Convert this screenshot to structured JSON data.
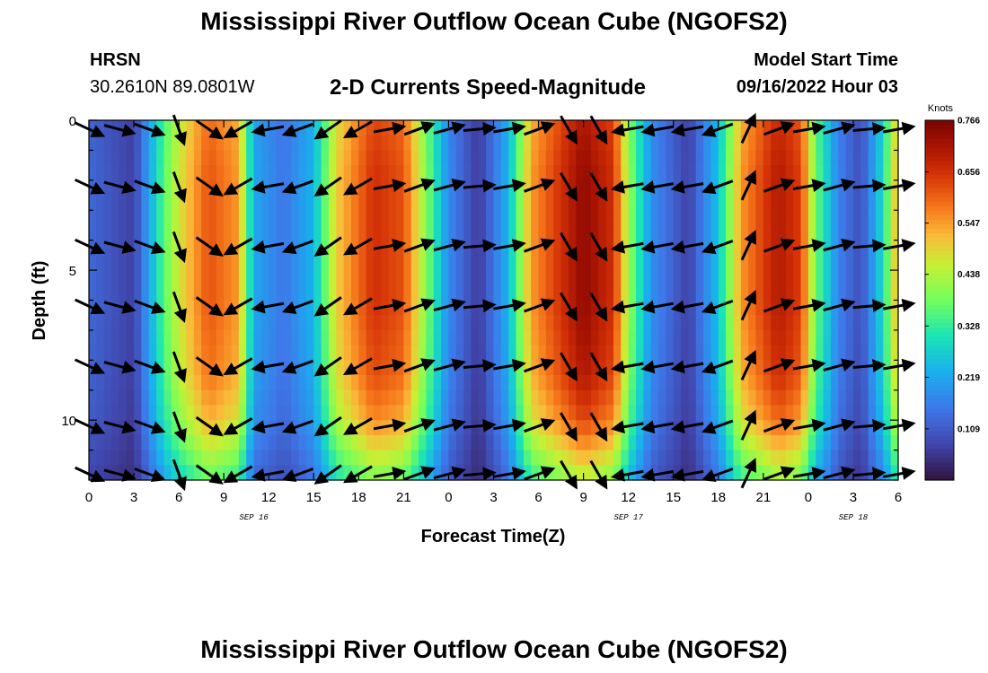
{
  "header": {
    "title": "Mississippi River Outflow Ocean Cube (NGOFS2)",
    "station": "HRSN",
    "coords": "30.2610N  89.0801W",
    "subtitle": "2-D Currents Speed-Magnitude",
    "model_start_label": "Model Start Time",
    "model_start_date": "09/16/2022 Hour 03"
  },
  "footer": {
    "title": "Mississippi River Outflow Ocean Cube (NGOFS2)"
  },
  "chart_data": {
    "type": "heatmap",
    "title": "2-D Currents Speed-Magnitude",
    "xlabel": "Forecast Time(Z)",
    "ylabel": "Depth (ft)",
    "colorbar_label": "Knots",
    "x_range_hours": [
      0,
      54
    ],
    "y_range_ft": [
      0,
      12
    ],
    "y_inverted": true,
    "x_tick_labels": [
      "0",
      "3",
      "6",
      "9",
      "12",
      "15",
      "18",
      "21",
      "0",
      "3",
      "6",
      "9",
      "12",
      "15",
      "18",
      "21",
      "0",
      "3",
      "6"
    ],
    "date_labels": [
      {
        "label": "SEP 16",
        "hour": 11
      },
      {
        "label": "SEP 17",
        "hour": 36
      },
      {
        "label": "SEP 18",
        "hour": 51
      }
    ],
    "y_ticks": [
      0,
      5,
      10
    ],
    "colorbar_ticks": [
      0.766,
      0.656,
      0.547,
      0.438,
      0.328,
      0.219,
      0.109
    ],
    "colorbar_range": [
      0.0,
      0.766
    ],
    "time_profile": [
      {
        "hour": 0,
        "speed": 0.13
      },
      {
        "hour": 3,
        "speed": 0.07
      },
      {
        "hour": 5,
        "speed": 0.36
      },
      {
        "hour": 6,
        "speed": 0.47
      },
      {
        "hour": 8,
        "speed": 0.62
      },
      {
        "hour": 10,
        "speed": 0.55
      },
      {
        "hour": 11,
        "speed": 0.22
      },
      {
        "hour": 13,
        "speed": 0.15
      },
      {
        "hour": 15,
        "speed": 0.24
      },
      {
        "hour": 16.5,
        "speed": 0.5
      },
      {
        "hour": 19,
        "speed": 0.66
      },
      {
        "hour": 21,
        "speed": 0.62
      },
      {
        "hour": 22.5,
        "speed": 0.4
      },
      {
        "hour": 24,
        "speed": 0.18
      },
      {
        "hour": 26,
        "speed": 0.06
      },
      {
        "hour": 28,
        "speed": 0.24
      },
      {
        "hour": 29.5,
        "speed": 0.55
      },
      {
        "hour": 33,
        "speed": 0.74
      },
      {
        "hour": 35,
        "speed": 0.66
      },
      {
        "hour": 36,
        "speed": 0.42
      },
      {
        "hour": 37.5,
        "speed": 0.19
      },
      {
        "hour": 40,
        "speed": 0.07
      },
      {
        "hour": 42,
        "speed": 0.26
      },
      {
        "hour": 43.5,
        "speed": 0.55
      },
      {
        "hour": 46,
        "speed": 0.7
      },
      {
        "hour": 47.5,
        "speed": 0.64
      },
      {
        "hour": 48.5,
        "speed": 0.38
      },
      {
        "hour": 50,
        "speed": 0.17
      },
      {
        "hour": 51.5,
        "speed": 0.09
      },
      {
        "hour": 53,
        "speed": 0.3
      },
      {
        "hour": 54,
        "speed": 0.55
      }
    ],
    "depth_profile": [
      {
        "depth": 0,
        "factor": 0.96
      },
      {
        "depth": 2,
        "factor": 1.0
      },
      {
        "depth": 6,
        "factor": 1.0
      },
      {
        "depth": 8.5,
        "factor": 0.95
      },
      {
        "depth": 10,
        "factor": 0.86
      },
      {
        "depth": 11,
        "factor": 0.74
      },
      {
        "depth": 12,
        "factor": 0.6
      }
    ],
    "vector_hours": [
      0,
      2,
      4,
      6,
      8,
      10,
      12,
      14,
      16,
      18,
      20,
      22,
      24,
      26,
      28,
      30,
      32,
      34,
      36,
      38,
      40,
      42,
      44,
      46,
      48,
      50,
      52,
      54
    ],
    "vector_depths": [
      0.3,
      2.2,
      4.2,
      6.2,
      8.2,
      10.2,
      11.8
    ],
    "vector_directions_deg": [
      -25,
      -15,
      -20,
      -70,
      -35,
      -150,
      -170,
      -160,
      -145,
      -150,
      10,
      20,
      15,
      5,
      10,
      20,
      -60,
      -60,
      -170,
      -170,
      -170,
      -160,
      65,
      20,
      10,
      15,
      5,
      10
    ]
  }
}
